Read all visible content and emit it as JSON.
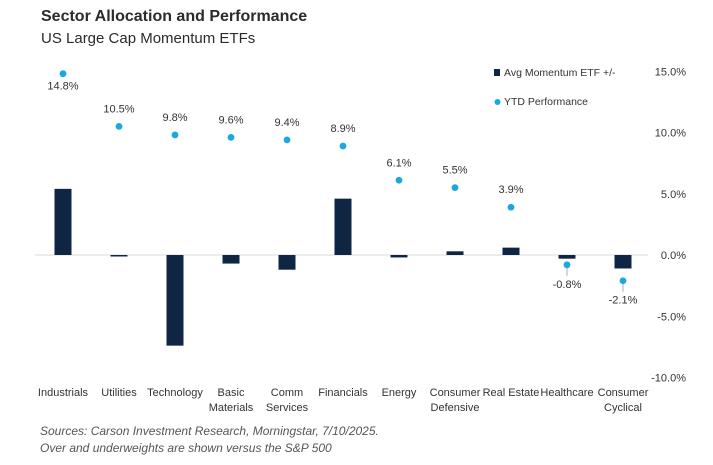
{
  "title": "Sector Allocation and Performance",
  "subtitle": "US Large Cap Momentum ETFs",
  "footnotes": [
    "Sources: Carson Investment Research, Morningstar, 7/10/2025.",
    "Over and underweights are shown versus the S&P 500"
  ],
  "colors": {
    "bar": "#0f2544",
    "dot": "#19a9e0"
  },
  "chart_data": {
    "type": "bar",
    "title": "Sector Allocation and Performance",
    "subtitle": "US Large Cap Momentum ETFs",
    "categories": [
      [
        "Industrials"
      ],
      [
        "Utilities"
      ],
      [
        "Technology"
      ],
      [
        "Basic",
        "Materials"
      ],
      [
        "Comm",
        "Services"
      ],
      [
        "Financials"
      ],
      [
        "Energy"
      ],
      [
        "Consumer",
        "Defensive"
      ],
      [
        "Real Estate"
      ],
      [
        "Healthcare"
      ],
      [
        "Consumer",
        "Cyclical"
      ]
    ],
    "series": [
      {
        "name": "Avg Momentum ETF +/-",
        "type": "bar",
        "color": "#0f2544",
        "values": [
          5.4,
          0.0,
          -7.4,
          -0.7,
          -1.2,
          4.6,
          -0.2,
          0.3,
          0.6,
          -0.3,
          -1.1
        ]
      },
      {
        "name": "YTD Performance",
        "type": "scatter",
        "color": "#19a9e0",
        "values": [
          14.8,
          10.5,
          9.8,
          9.6,
          9.4,
          8.9,
          6.1,
          5.5,
          3.9,
          -0.8,
          -2.1
        ],
        "labels": [
          "14.8%",
          "10.5%",
          "9.8%",
          "9.6%",
          "9.4%",
          "8.9%",
          "6.1%",
          "5.5%",
          "3.9%",
          "-0.8%",
          "-2.1%"
        ]
      }
    ],
    "y_axis": {
      "position": "right",
      "ylim": [
        -10,
        15
      ],
      "ticks": [
        15,
        10,
        5,
        0,
        -5,
        -10
      ],
      "tick_labels": [
        "15.0%",
        "10.0%",
        "5.0%",
        "0.0%",
        "-5.0%",
        "-10.0%"
      ]
    },
    "grid": false,
    "legend": "top-right"
  }
}
